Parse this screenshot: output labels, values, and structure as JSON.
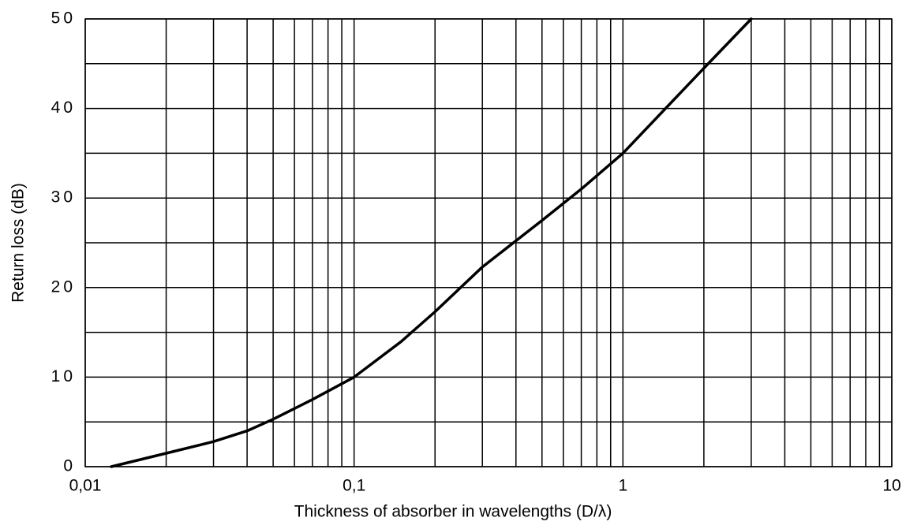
{
  "chart_data": {
    "type": "line",
    "xlabel": "Thickness of absorber in wavelengths (D/λ)",
    "ylabel": "Return loss (dB)",
    "x": [
      0.0125,
      0.02,
      0.03,
      0.04,
      0.05,
      0.07,
      0.1,
      0.15,
      0.2,
      0.3,
      0.5,
      0.7,
      1,
      2,
      3
    ],
    "values": [
      0,
      1.5,
      2.8,
      4,
      5.3,
      7.5,
      10,
      14,
      17.3,
      22.3,
      27.5,
      31,
      35,
      44.5,
      50
    ],
    "color": "#000000",
    "xscale": "log",
    "xlim": [
      0.01,
      10
    ],
    "xticks": [
      {
        "value": 0.01,
        "label": "0,01"
      },
      {
        "value": 0.1,
        "label": "0,1"
      },
      1,
      10
    ],
    "ylim": [
      0,
      50
    ],
    "yticks": [
      0,
      10,
      20,
      30,
      40,
      50
    ],
    "grid": true
  }
}
